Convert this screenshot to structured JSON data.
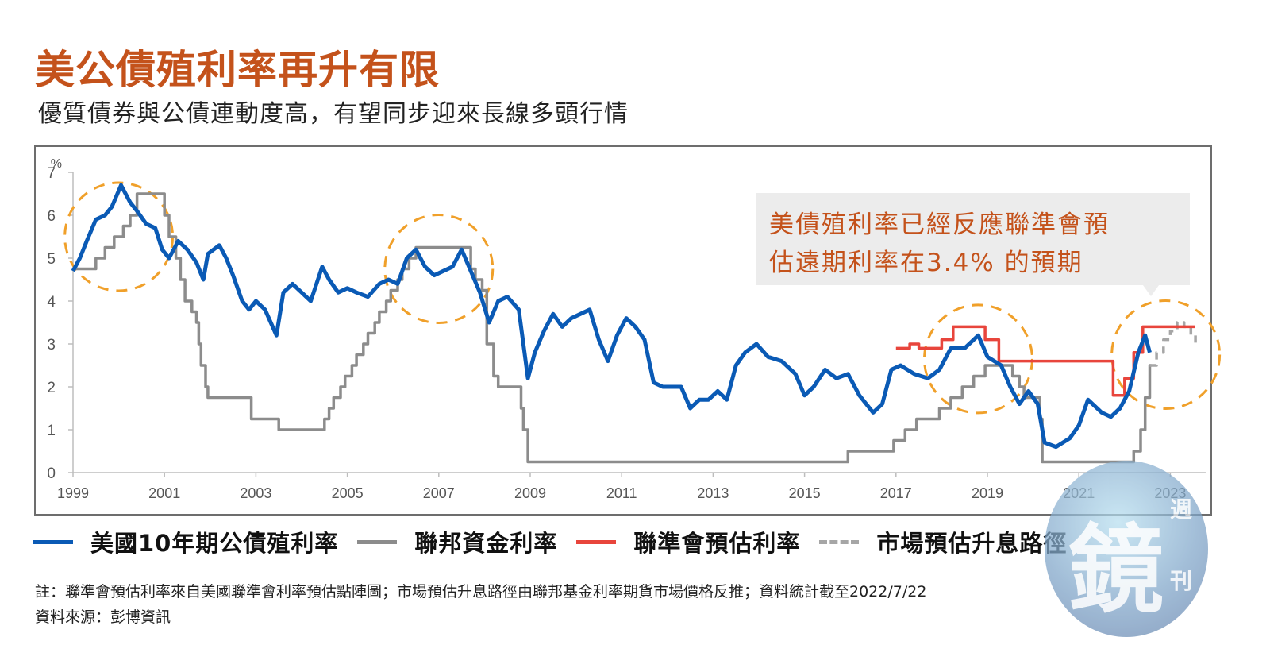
{
  "header": {
    "title": "美公債殖利率再升有限",
    "subtitle": "優質債券與公債連動度高，有望同步迎來長線多頭行情"
  },
  "callout": {
    "line1": "美債殖利率已經反應聯準會預",
    "line2": "估遠期利率在3.4% 的預期"
  },
  "legend": [
    {
      "label": "美國10年期公債殖利率",
      "color": "#0a5ab5",
      "style": "solid"
    },
    {
      "label": "聯邦資金利率",
      "color": "#8c8c8c",
      "style": "solid"
    },
    {
      "label": "聯準會預估利率",
      "color": "#e8453c",
      "style": "solid"
    },
    {
      "label": "市場預估升息路徑",
      "color": "#a6a6a6",
      "style": "dashed"
    }
  ],
  "notes": {
    "note": "註：聯準會預估利率來自美國聯準會利率預估點陣圖；市場預估升息路徑由聯邦基金利率期貨市場價格反推；資料統計截至2022/7/22",
    "source": "資料來源：彭博資訊"
  },
  "watermark": {
    "main": "鏡",
    "side_top": "週",
    "side_bottom": "刊"
  },
  "colors": {
    "title": "#c4521b",
    "highlight_circle": "#f0a02a",
    "callout_bg": "#ececec"
  },
  "chart_data": {
    "type": "line",
    "title": "美公債殖利率再升有限",
    "subtitle": "優質債券與公債連動度高，有望同步迎來長線多頭行情",
    "xlabel": "",
    "ylabel": "%",
    "xlim": [
      1999,
      2023.6
    ],
    "ylim": [
      0,
      7
    ],
    "y_ticks": [
      0,
      1,
      2,
      3,
      4,
      5,
      6,
      7
    ],
    "x_ticks": [
      1999,
      2001,
      2003,
      2005,
      2007,
      2009,
      2011,
      2013,
      2015,
      2017,
      2019,
      2021,
      2023
    ],
    "grid": false,
    "legend_position": "bottom",
    "series": [
      {
        "name": "美國10年期公債殖利率",
        "color": "#0a5ab5",
        "points": [
          [
            1999.0,
            4.7
          ],
          [
            1999.15,
            5.0
          ],
          [
            1999.3,
            5.4
          ],
          [
            1999.5,
            5.9
          ],
          [
            1999.7,
            6.0
          ],
          [
            1999.85,
            6.2
          ],
          [
            2000.05,
            6.7
          ],
          [
            2000.25,
            6.3
          ],
          [
            2000.4,
            6.1
          ],
          [
            2000.6,
            5.8
          ],
          [
            2000.8,
            5.7
          ],
          [
            2000.95,
            5.2
          ],
          [
            2001.1,
            5.0
          ],
          [
            2001.3,
            5.4
          ],
          [
            2001.5,
            5.2
          ],
          [
            2001.7,
            4.9
          ],
          [
            2001.85,
            4.5
          ],
          [
            2001.95,
            5.1
          ],
          [
            2002.2,
            5.3
          ],
          [
            2002.35,
            5.0
          ],
          [
            2002.5,
            4.6
          ],
          [
            2002.7,
            4.0
          ],
          [
            2002.85,
            3.8
          ],
          [
            2003.0,
            4.0
          ],
          [
            2003.2,
            3.8
          ],
          [
            2003.45,
            3.2
          ],
          [
            2003.6,
            4.2
          ],
          [
            2003.8,
            4.4
          ],
          [
            2004.0,
            4.2
          ],
          [
            2004.2,
            4.0
          ],
          [
            2004.45,
            4.8
          ],
          [
            2004.6,
            4.5
          ],
          [
            2004.8,
            4.2
          ],
          [
            2005.0,
            4.3
          ],
          [
            2005.2,
            4.2
          ],
          [
            2005.45,
            4.1
          ],
          [
            2005.7,
            4.4
          ],
          [
            2005.9,
            4.5
          ],
          [
            2006.1,
            4.4
          ],
          [
            2006.3,
            5.0
          ],
          [
            2006.5,
            5.2
          ],
          [
            2006.7,
            4.8
          ],
          [
            2006.9,
            4.6
          ],
          [
            2007.1,
            4.7
          ],
          [
            2007.3,
            4.8
          ],
          [
            2007.5,
            5.2
          ],
          [
            2007.7,
            4.7
          ],
          [
            2007.9,
            4.2
          ],
          [
            2008.1,
            3.5
          ],
          [
            2008.3,
            4.0
          ],
          [
            2008.5,
            4.1
          ],
          [
            2008.75,
            3.8
          ],
          [
            2008.95,
            2.2
          ],
          [
            2009.1,
            2.8
          ],
          [
            2009.3,
            3.3
          ],
          [
            2009.5,
            3.7
          ],
          [
            2009.7,
            3.4
          ],
          [
            2009.9,
            3.6
          ],
          [
            2010.1,
            3.7
          ],
          [
            2010.3,
            3.8
          ],
          [
            2010.5,
            3.1
          ],
          [
            2010.7,
            2.6
          ],
          [
            2010.9,
            3.2
          ],
          [
            2011.1,
            3.6
          ],
          [
            2011.3,
            3.4
          ],
          [
            2011.5,
            3.1
          ],
          [
            2011.7,
            2.1
          ],
          [
            2011.9,
            2.0
          ],
          [
            2012.1,
            2.0
          ],
          [
            2012.3,
            2.0
          ],
          [
            2012.5,
            1.5
          ],
          [
            2012.7,
            1.7
          ],
          [
            2012.9,
            1.7
          ],
          [
            2013.1,
            1.9
          ],
          [
            2013.3,
            1.7
          ],
          [
            2013.5,
            2.5
          ],
          [
            2013.7,
            2.8
          ],
          [
            2013.95,
            3.0
          ],
          [
            2014.2,
            2.7
          ],
          [
            2014.5,
            2.6
          ],
          [
            2014.8,
            2.3
          ],
          [
            2015.0,
            1.8
          ],
          [
            2015.2,
            2.0
          ],
          [
            2015.45,
            2.4
          ],
          [
            2015.7,
            2.2
          ],
          [
            2015.95,
            2.3
          ],
          [
            2016.2,
            1.8
          ],
          [
            2016.5,
            1.4
          ],
          [
            2016.7,
            1.6
          ],
          [
            2016.9,
            2.4
          ],
          [
            2017.1,
            2.5
          ],
          [
            2017.4,
            2.3
          ],
          [
            2017.7,
            2.2
          ],
          [
            2017.95,
            2.4
          ],
          [
            2018.2,
            2.9
          ],
          [
            2018.5,
            2.9
          ],
          [
            2018.8,
            3.2
          ],
          [
            2019.0,
            2.7
          ],
          [
            2019.3,
            2.5
          ],
          [
            2019.5,
            2.0
          ],
          [
            2019.7,
            1.6
          ],
          [
            2019.9,
            1.9
          ],
          [
            2020.1,
            1.6
          ],
          [
            2020.25,
            0.7
          ],
          [
            2020.5,
            0.6
          ],
          [
            2020.8,
            0.8
          ],
          [
            2021.0,
            1.1
          ],
          [
            2021.2,
            1.7
          ],
          [
            2021.5,
            1.4
          ],
          [
            2021.7,
            1.3
          ],
          [
            2021.9,
            1.5
          ],
          [
            2022.1,
            1.9
          ],
          [
            2022.3,
            2.8
          ],
          [
            2022.45,
            3.2
          ],
          [
            2022.55,
            2.8
          ]
        ]
      },
      {
        "name": "聯邦資金利率",
        "color": "#8c8c8c",
        "step": true,
        "points": [
          [
            1999.0,
            4.75
          ],
          [
            1999.5,
            5.0
          ],
          [
            1999.7,
            5.25
          ],
          [
            1999.9,
            5.5
          ],
          [
            2000.1,
            5.75
          ],
          [
            2000.25,
            6.0
          ],
          [
            2000.4,
            6.5
          ],
          [
            2001.0,
            6.0
          ],
          [
            2001.1,
            5.5
          ],
          [
            2001.25,
            5.0
          ],
          [
            2001.35,
            4.5
          ],
          [
            2001.45,
            4.0
          ],
          [
            2001.6,
            3.75
          ],
          [
            2001.7,
            3.5
          ],
          [
            2001.75,
            3.0
          ],
          [
            2001.8,
            2.5
          ],
          [
            2001.9,
            2.0
          ],
          [
            2001.95,
            1.75
          ],
          [
            2002.9,
            1.25
          ],
          [
            2003.5,
            1.0
          ],
          [
            2004.5,
            1.25
          ],
          [
            2004.6,
            1.5
          ],
          [
            2004.7,
            1.75
          ],
          [
            2004.85,
            2.0
          ],
          [
            2004.95,
            2.25
          ],
          [
            2005.1,
            2.5
          ],
          [
            2005.2,
            2.75
          ],
          [
            2005.35,
            3.0
          ],
          [
            2005.45,
            3.25
          ],
          [
            2005.6,
            3.5
          ],
          [
            2005.7,
            3.75
          ],
          [
            2005.85,
            4.0
          ],
          [
            2005.95,
            4.25
          ],
          [
            2006.1,
            4.5
          ],
          [
            2006.2,
            4.75
          ],
          [
            2006.35,
            5.0
          ],
          [
            2006.5,
            5.25
          ],
          [
            2007.7,
            4.75
          ],
          [
            2007.8,
            4.5
          ],
          [
            2007.95,
            4.25
          ],
          [
            2008.05,
            3.0
          ],
          [
            2008.2,
            2.25
          ],
          [
            2008.3,
            2.0
          ],
          [
            2008.8,
            1.5
          ],
          [
            2008.85,
            1.0
          ],
          [
            2008.95,
            0.25
          ],
          [
            2015.95,
            0.5
          ],
          [
            2016.95,
            0.75
          ],
          [
            2017.2,
            1.0
          ],
          [
            2017.45,
            1.25
          ],
          [
            2017.95,
            1.5
          ],
          [
            2018.2,
            1.75
          ],
          [
            2018.45,
            2.0
          ],
          [
            2018.7,
            2.25
          ],
          [
            2018.95,
            2.5
          ],
          [
            2019.55,
            2.25
          ],
          [
            2019.7,
            2.0
          ],
          [
            2019.8,
            1.75
          ],
          [
            2020.15,
            1.25
          ],
          [
            2020.2,
            0.25
          ],
          [
            2022.2,
            0.5
          ],
          [
            2022.35,
            1.0
          ],
          [
            2022.45,
            1.75
          ],
          [
            2022.55,
            2.5
          ]
        ]
      },
      {
        "name": "聯準會預估利率",
        "color": "#e8453c",
        "step": true,
        "points": [
          [
            2017.0,
            2.9
          ],
          [
            2017.3,
            3.0
          ],
          [
            2017.5,
            2.9
          ],
          [
            2018.0,
            3.1
          ],
          [
            2018.25,
            3.4
          ],
          [
            2018.95,
            3.1
          ],
          [
            2019.25,
            2.6
          ],
          [
            2019.5,
            2.6
          ],
          [
            2021.75,
            1.8
          ],
          [
            2022.0,
            2.2
          ],
          [
            2022.2,
            2.8
          ],
          [
            2022.4,
            3.4
          ],
          [
            2023.5,
            3.4
          ]
        ]
      },
      {
        "name": "市場預估升息路徑",
        "color": "#a6a6a6",
        "style": "dashed",
        "step": true,
        "points": [
          [
            2022.55,
            2.5
          ],
          [
            2022.7,
            2.8
          ],
          [
            2022.85,
            3.1
          ],
          [
            2023.0,
            3.3
          ],
          [
            2023.15,
            3.5
          ],
          [
            2023.3,
            3.4
          ],
          [
            2023.45,
            3.2
          ],
          [
            2023.55,
            3.0
          ]
        ]
      }
    ],
    "annotations": [
      {
        "type": "dashed-circle",
        "center": [
          2000.0,
          5.5
        ],
        "label": ""
      },
      {
        "type": "dashed-circle",
        "center": [
          2007.0,
          4.75
        ],
        "label": ""
      },
      {
        "type": "dashed-circle",
        "center": [
          2018.8,
          2.65
        ],
        "label": ""
      },
      {
        "type": "dashed-circle",
        "center": [
          2022.9,
          2.75
        ],
        "label": ""
      },
      {
        "type": "callout",
        "text": "美債殖利率已經反應聯準會預估遠期利率在3.4% 的預期"
      }
    ]
  }
}
